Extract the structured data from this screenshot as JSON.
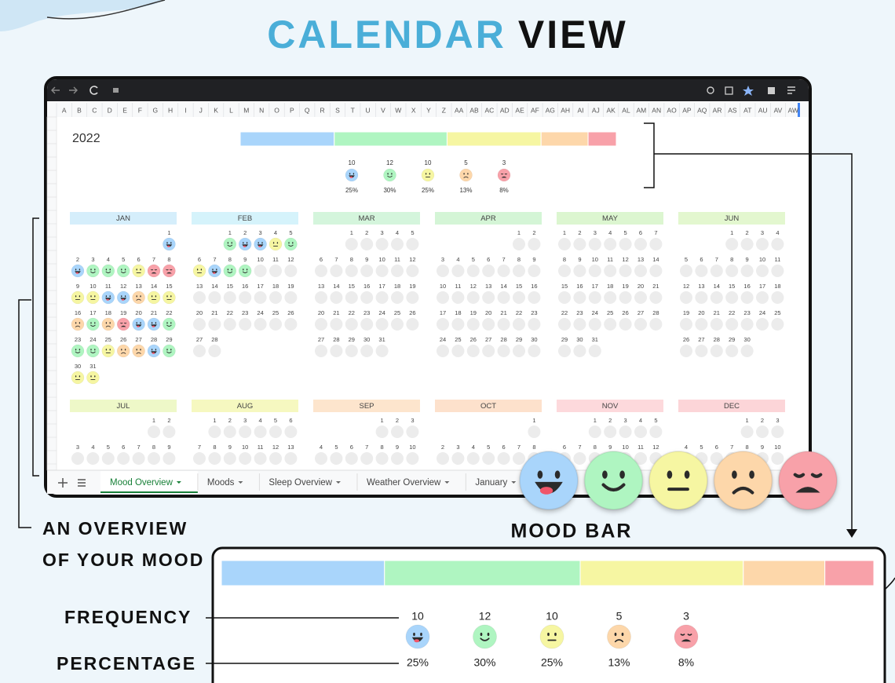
{
  "header": {
    "title_accent": "CALENDAR",
    "title_rest": "VIEW"
  },
  "sheet": {
    "columns": [
      "A",
      "B",
      "C",
      "D",
      "E",
      "F",
      "G",
      "H",
      "I",
      "J",
      "K",
      "L",
      "M",
      "N",
      "O",
      "P",
      "Q",
      "R",
      "S",
      "T",
      "U",
      "V",
      "W",
      "X",
      "Y",
      "Z",
      "AA",
      "AB",
      "AC",
      "AD",
      "AE",
      "AF",
      "AG",
      "AH",
      "AI",
      "AJ",
      "AK",
      "AL",
      "AM",
      "AN",
      "AO",
      "AP",
      "AQ",
      "AR",
      "AS",
      "AT",
      "AU",
      "AV",
      "AW"
    ],
    "year": "2022",
    "mood_colors": [
      "#a9d5fb",
      "#aff5c1",
      "#f6f6a2",
      "#fdd7aa",
      "#f8a1a9"
    ],
    "mood_summary": {
      "counts": [
        10,
        12,
        10,
        5,
        3
      ],
      "percentages": [
        "25%",
        "30%",
        "25%",
        "13%",
        "8%"
      ]
    },
    "months": [
      {
        "name": "JAN",
        "color": "#d5eefb",
        "weeks": [
          [
            null,
            null,
            null,
            null,
            null,
            null,
            1
          ],
          [
            2,
            3,
            4,
            5,
            6,
            7,
            8
          ],
          [
            9,
            10,
            11,
            12,
            13,
            14,
            15
          ],
          [
            16,
            17,
            18,
            19,
            20,
            21,
            22
          ],
          [
            23,
            24,
            25,
            26,
            27,
            28,
            29
          ],
          [
            30,
            31
          ]
        ],
        "moods": [
          0,
          0,
          1,
          1,
          1,
          2,
          4,
          4,
          2,
          2,
          0,
          0,
          3,
          2,
          2,
          3,
          1,
          3,
          4,
          0,
          0,
          1,
          1,
          1,
          2,
          3,
          3,
          0,
          1,
          2,
          2
        ]
      },
      {
        "name": "FEB",
        "color": "#d5f3fb",
        "weeks": [
          [
            null,
            null,
            1,
            2,
            3,
            4,
            5
          ],
          [
            6,
            7,
            8,
            9,
            10,
            11,
            12
          ],
          [
            13,
            14,
            15,
            16,
            17,
            18,
            19
          ],
          [
            20,
            21,
            22,
            23,
            24,
            25,
            26
          ],
          [
            27,
            28
          ]
        ],
        "moods": [
          1,
          0,
          0,
          2,
          1,
          2,
          0,
          1,
          1,
          null,
          null,
          null,
          null,
          null,
          null,
          null,
          null,
          null,
          null,
          null,
          null,
          null,
          null,
          null,
          null,
          null,
          null,
          null
        ]
      },
      {
        "name": "MAR",
        "color": "#d4f5dc",
        "weeks": [
          [
            null,
            null,
            1,
            2,
            3,
            4,
            5
          ],
          [
            6,
            7,
            8,
            9,
            10,
            11,
            12
          ],
          [
            13,
            14,
            15,
            16,
            17,
            18,
            19
          ],
          [
            20,
            21,
            22,
            23,
            24,
            25,
            26
          ],
          [
            27,
            28,
            29,
            30,
            31
          ]
        ]
      },
      {
        "name": "APR",
        "color": "#d4f5d6",
        "weeks": [
          [
            null,
            null,
            null,
            null,
            null,
            1,
            2
          ],
          [
            3,
            4,
            5,
            6,
            7,
            8,
            9
          ],
          [
            10,
            11,
            12,
            13,
            14,
            15,
            16
          ],
          [
            17,
            18,
            19,
            20,
            21,
            22,
            23
          ],
          [
            24,
            25,
            26,
            27,
            28,
            29,
            30
          ]
        ]
      },
      {
        "name": "MAY",
        "color": "#dcf6d0",
        "weeks": [
          [
            1,
            2,
            3,
            4,
            5,
            6,
            7
          ],
          [
            8,
            9,
            10,
            11,
            12,
            13,
            14
          ],
          [
            15,
            16,
            17,
            18,
            19,
            20,
            21
          ],
          [
            22,
            23,
            24,
            25,
            26,
            27,
            28
          ],
          [
            29,
            30,
            31
          ]
        ]
      },
      {
        "name": "JUN",
        "color": "#e3f7cf",
        "weeks": [
          [
            null,
            null,
            null,
            1,
            2,
            3,
            4
          ],
          [
            5,
            6,
            7,
            8,
            9,
            10,
            11
          ],
          [
            12,
            13,
            14,
            15,
            16,
            17,
            18
          ],
          [
            19,
            20,
            21,
            22,
            23,
            24,
            25
          ],
          [
            26,
            27,
            28,
            29,
            30
          ]
        ]
      },
      {
        "name": "JUL",
        "color": "#eef8c8",
        "weeks": [
          [
            null,
            null,
            null,
            null,
            null,
            1,
            2
          ],
          [
            3,
            4,
            5,
            6,
            7,
            8,
            9
          ]
        ]
      },
      {
        "name": "AUG",
        "color": "#f6f8c0",
        "weeks": [
          [
            null,
            1,
            2,
            3,
            4,
            5,
            6
          ],
          [
            7,
            8,
            9,
            10,
            11,
            12,
            13
          ]
        ]
      },
      {
        "name": "SEP",
        "color": "#fde5cd",
        "weeks": [
          [
            null,
            null,
            null,
            null,
            1,
            2,
            3
          ],
          [
            4,
            5,
            6,
            7,
            8,
            9,
            10
          ]
        ]
      },
      {
        "name": "OCT",
        "color": "#fde1cc",
        "weeks": [
          [
            null,
            null,
            null,
            null,
            null,
            null,
            1
          ],
          [
            2,
            3,
            4,
            5,
            6,
            7,
            8
          ]
        ]
      },
      {
        "name": "NOV",
        "color": "#fdd9dc",
        "weeks": [
          [
            null,
            null,
            1,
            2,
            3,
            4,
            5
          ],
          [
            6,
            7,
            8,
            9,
            10,
            11,
            12
          ]
        ]
      },
      {
        "name": "DEC",
        "color": "#fcd5d8",
        "weeks": [
          [
            null,
            null,
            null,
            null,
            1,
            2,
            3
          ],
          [
            4,
            5,
            6,
            7,
            8,
            9,
            10
          ]
        ]
      }
    ],
    "tabs": [
      "Mood Overview",
      "Moods",
      "Sleep Overview",
      "Weather Overview",
      "January"
    ],
    "active_tab": 0
  },
  "labels": {
    "overview_1": "AN OVERVIEW",
    "overview_2": "OF YOUR MOOD",
    "mood_bar": "MOOD BAR",
    "frequency": "FREQUENCY",
    "percentage": "PERCENTAGE"
  }
}
